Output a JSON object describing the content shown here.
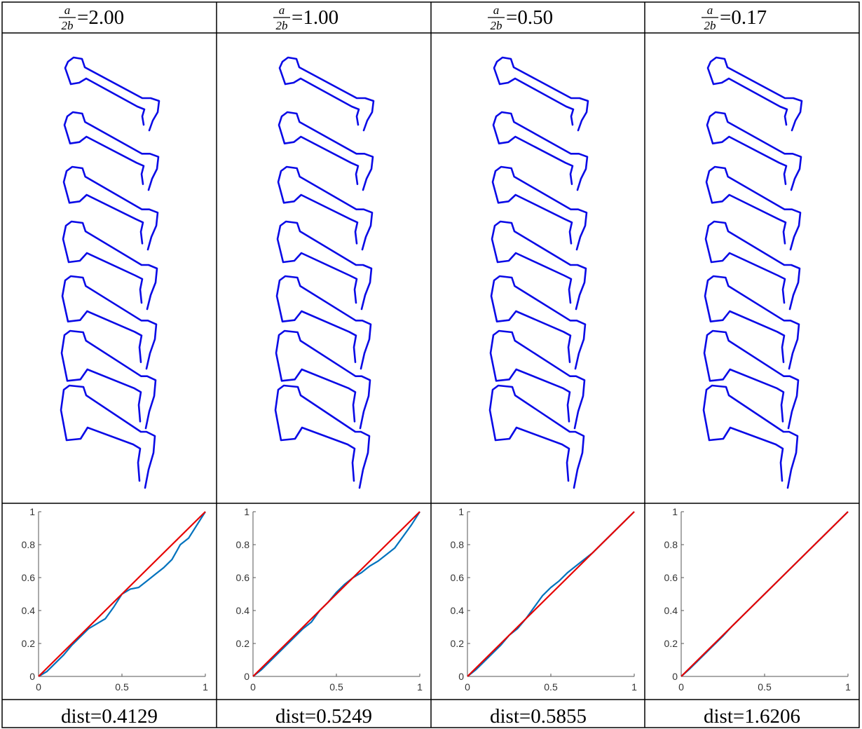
{
  "columns": [
    {
      "numerator": "a",
      "denominator": "2b",
      "ratio": "=2.00",
      "dist": "dist=0.4129"
    },
    {
      "numerator": "a",
      "denominator": "2b",
      "ratio": "=1.00",
      "dist": "dist=0.5249"
    },
    {
      "numerator": "a",
      "denominator": "2b",
      "ratio": "=0.50",
      "dist": "dist=0.5855"
    },
    {
      "numerator": "a",
      "denominator": "2b",
      "ratio": "=0.17",
      "dist": "dist=1.6206"
    }
  ],
  "chart_data": [
    {
      "type": "line",
      "x": [
        0,
        0.05,
        0.1,
        0.15,
        0.2,
        0.25,
        0.3,
        0.35,
        0.4,
        0.45,
        0.5,
        0.55,
        0.6,
        0.65,
        0.7,
        0.75,
        0.8,
        0.85,
        0.9,
        0.95,
        1
      ],
      "series": [
        {
          "color": "#0072bd",
          "values": [
            0,
            0.03,
            0.08,
            0.13,
            0.19,
            0.24,
            0.29,
            0.32,
            0.35,
            0.42,
            0.5,
            0.53,
            0.54,
            0.58,
            0.62,
            0.66,
            0.71,
            0.8,
            0.84,
            0.92,
            1
          ]
        },
        {
          "color": "#e60000",
          "values": [
            0,
            0.05,
            0.1,
            0.15,
            0.2,
            0.25,
            0.3,
            0.35,
            0.4,
            0.45,
            0.5,
            0.55,
            0.6,
            0.65,
            0.7,
            0.75,
            0.8,
            0.85,
            0.9,
            0.95,
            1
          ]
        }
      ],
      "xlim": [
        0,
        1
      ],
      "ylim": [
        0,
        1
      ],
      "xticks": [
        0,
        0.5,
        1
      ],
      "yticks": [
        0,
        0.2,
        0.4,
        0.6,
        0.8,
        1
      ]
    },
    {
      "type": "line",
      "x": [
        0,
        0.05,
        0.1,
        0.15,
        0.2,
        0.25,
        0.3,
        0.35,
        0.4,
        0.45,
        0.5,
        0.55,
        0.6,
        0.65,
        0.7,
        0.75,
        0.8,
        0.85,
        0.9,
        0.95,
        1
      ],
      "series": [
        {
          "color": "#0072bd",
          "values": [
            0,
            0.04,
            0.09,
            0.14,
            0.19,
            0.24,
            0.29,
            0.33,
            0.4,
            0.45,
            0.51,
            0.56,
            0.6,
            0.63,
            0.67,
            0.7,
            0.74,
            0.78,
            0.85,
            0.92,
            1
          ]
        },
        {
          "color": "#e60000",
          "values": [
            0,
            0.05,
            0.1,
            0.15,
            0.2,
            0.25,
            0.3,
            0.35,
            0.4,
            0.45,
            0.5,
            0.55,
            0.6,
            0.65,
            0.7,
            0.75,
            0.8,
            0.85,
            0.9,
            0.95,
            1
          ]
        }
      ],
      "xlim": [
        0,
        1
      ],
      "ylim": [
        0,
        1
      ],
      "xticks": [
        0,
        0.5,
        1
      ],
      "yticks": [
        0,
        0.2,
        0.4,
        0.6,
        0.8,
        1
      ]
    },
    {
      "type": "line",
      "x": [
        0,
        0.05,
        0.1,
        0.15,
        0.2,
        0.25,
        0.3,
        0.35,
        0.4,
        0.45,
        0.5,
        0.55,
        0.6,
        0.65,
        0.7,
        0.75,
        0.8,
        0.85,
        0.9,
        0.95,
        1
      ],
      "series": [
        {
          "color": "#0072bd",
          "values": [
            0,
            0.04,
            0.09,
            0.14,
            0.19,
            0.25,
            0.29,
            0.35,
            0.42,
            0.49,
            0.54,
            0.58,
            0.63,
            0.67,
            0.71,
            0.75,
            0.8,
            0.85,
            0.9,
            0.95,
            1
          ]
        },
        {
          "color": "#e60000",
          "values": [
            0,
            0.05,
            0.1,
            0.15,
            0.2,
            0.25,
            0.3,
            0.35,
            0.4,
            0.45,
            0.5,
            0.55,
            0.6,
            0.65,
            0.7,
            0.75,
            0.8,
            0.85,
            0.9,
            0.95,
            1
          ]
        }
      ],
      "xlim": [
        0,
        1
      ],
      "ylim": [
        0,
        1
      ],
      "xticks": [
        0,
        0.5,
        1
      ],
      "yticks": [
        0,
        0.2,
        0.4,
        0.6,
        0.8,
        1
      ]
    },
    {
      "type": "line",
      "x": [
        0,
        0.05,
        0.1,
        0.15,
        0.2,
        0.25,
        0.3,
        0.35,
        0.4,
        0.45,
        0.5,
        0.55,
        0.6,
        0.65,
        0.7,
        0.75,
        0.8,
        0.85,
        0.9,
        0.95,
        1
      ],
      "series": [
        {
          "color": "#0072bd",
          "values": [
            0,
            0.045,
            0.095,
            0.145,
            0.195,
            0.245,
            0.3,
            0.35,
            0.4,
            0.45,
            0.5,
            0.55,
            0.6,
            0.65,
            0.7,
            0.75,
            0.8,
            0.85,
            0.9,
            0.95,
            1
          ]
        },
        {
          "color": "#e60000",
          "values": [
            0,
            0.05,
            0.1,
            0.15,
            0.2,
            0.25,
            0.3,
            0.35,
            0.4,
            0.45,
            0.5,
            0.55,
            0.6,
            0.65,
            0.7,
            0.75,
            0.8,
            0.85,
            0.9,
            0.95,
            1
          ]
        }
      ],
      "xlim": [
        0,
        1
      ],
      "ylim": [
        0,
        1
      ],
      "xticks": [
        0,
        0.5,
        1
      ],
      "yticks": [
        0,
        0.2,
        0.4,
        0.6,
        0.8,
        1
      ]
    }
  ]
}
